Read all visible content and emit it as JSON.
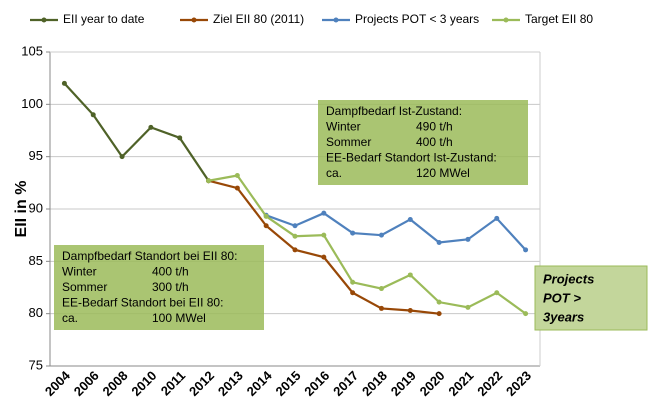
{
  "chart_data": {
    "type": "line",
    "y_label": "EII in %",
    "categories": [
      "2004",
      "2006",
      "2008",
      "2010",
      "2011",
      "2012",
      "2013",
      "2014",
      "2015",
      "2016",
      "2017",
      "2018",
      "2019",
      "2020",
      "2021",
      "2022",
      "2023"
    ],
    "series": [
      {
        "name": "EII year to date",
        "color": "#4f6228",
        "values": [
          102,
          99,
          95,
          97.8,
          96.8,
          92.7,
          null,
          null,
          null,
          null,
          null,
          null,
          null,
          null,
          null,
          null,
          null
        ]
      },
      {
        "name": "Ziel EII 80 (2011)",
        "color": "#984807",
        "values": [
          null,
          null,
          null,
          null,
          null,
          92.7,
          92.0,
          88.4,
          86.1,
          85.4,
          82.0,
          80.5,
          80.3,
          80.0,
          null,
          null,
          null
        ]
      },
      {
        "name": "Projects POT < 3 years",
        "color": "#4f81bd",
        "values": [
          null,
          null,
          null,
          null,
          null,
          null,
          null,
          89.4,
          88.4,
          89.6,
          87.7,
          87.5,
          89.0,
          86.8,
          87.1,
          89.1,
          86.1
        ]
      },
      {
        "name": "Target EII 80",
        "color": "#9bbb59",
        "values": [
          null,
          null,
          null,
          null,
          null,
          92.7,
          93.2,
          89.3,
          87.4,
          87.5,
          83.0,
          82.4,
          83.7,
          81.1,
          80.6,
          82.0,
          80.0
        ]
      }
    ],
    "ylim": [
      75,
      105
    ],
    "yticks": [
      75,
      80,
      85,
      90,
      95,
      100,
      105
    ],
    "grid": true,
    "legend": "top",
    "annotations": [
      {
        "rows": [
          [
            "Dampfbedarf Ist-Zustand:"
          ],
          [
            "Winter",
            "490 t/h"
          ],
          [
            "Sommer",
            "400 t/h"
          ],
          [
            "EE-Bedarf Standort Ist-Zustand:"
          ],
          [
            "ca.",
            "120 MWel"
          ]
        ]
      },
      {
        "rows": [
          [
            "Dampfbedarf Standort bei EII 80:"
          ],
          [
            "Winter",
            "400 t/h"
          ],
          [
            "Sommer",
            "300 t/h"
          ],
          [
            "EE-Bedarf Standort bei EII 80:"
          ],
          [
            "ca.",
            "100 MWel"
          ]
        ]
      },
      {
        "rows": [
          [
            "Projects"
          ],
          [
            "POT >"
          ],
          [
            "3years"
          ]
        ]
      }
    ]
  }
}
